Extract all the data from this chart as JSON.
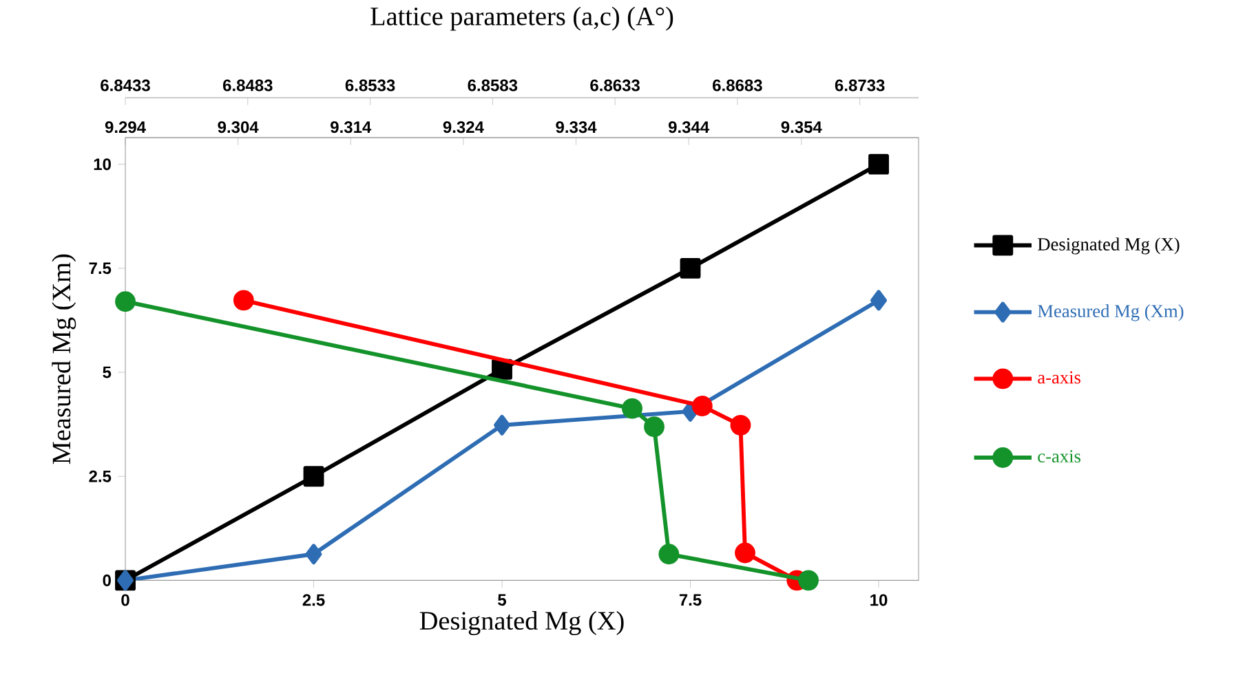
{
  "chart_data": [
    {
      "type": "line",
      "xlabel": "Designated Mg (X)",
      "ylabel": "Measured Mg (Xm)",
      "xlim": [
        0,
        10.53
      ],
      "xticks": [
        0,
        2.5,
        5,
        7.5,
        10
      ],
      "ylim": [
        0,
        10.64
      ],
      "yticks": [
        0,
        2.5,
        5,
        7.5,
        10
      ],
      "x2lim": [
        9.294,
        9.3644
      ],
      "x2ticks": [
        9.294,
        9.304,
        9.314,
        9.324,
        9.334,
        9.344,
        9.354
      ],
      "grid": false,
      "legend": "right",
      "line_style": "solid",
      "series": [
        {
          "name": "Designated Mg (X)",
          "color": "#000000",
          "marker": "square",
          "x": [
            0,
            2.5,
            5,
            7.5,
            10
          ],
          "values": [
            0,
            2.5,
            5.07,
            7.5,
            10
          ]
        },
        {
          "name": "Measured Mg (Xm)",
          "color": "#2e6db4",
          "marker": "diamond",
          "x": [
            0,
            2.5,
            5,
            7.5,
            10
          ],
          "values": [
            0,
            0.63,
            3.73,
            4.06,
            6.73
          ]
        },
        {
          "name": "a-axis",
          "color": "#ff0000",
          "marker": "circle",
          "axis": "x2",
          "x": [
            9.3045,
            9.3452,
            9.3486,
            9.349,
            9.3536
          ],
          "values": [
            6.73,
            4.19,
            3.73,
            0.66,
            0
          ]
        }
      ]
    },
    {
      "type": "line",
      "xlabel": "Lattice parameters (a,c) (A°)",
      "xlim": [
        6.8433,
        6.8757
      ],
      "xticks": [
        6.8433,
        6.8483,
        6.8533,
        6.8583,
        6.8633,
        6.8683,
        6.8733
      ],
      "ylim": [
        0,
        10.64
      ],
      "tick_labels": "x",
      "grid": false,
      "legend": "right",
      "line_style": "solid",
      "series": [
        {
          "name": "c-axis",
          "color": "#14932a",
          "marker": "circle",
          "x": [
            6.8433,
            6.864,
            6.8649,
            6.8655,
            6.8712
          ],
          "values": [
            6.7,
            4.13,
            3.69,
            0.63,
            0
          ]
        }
      ]
    }
  ]
}
